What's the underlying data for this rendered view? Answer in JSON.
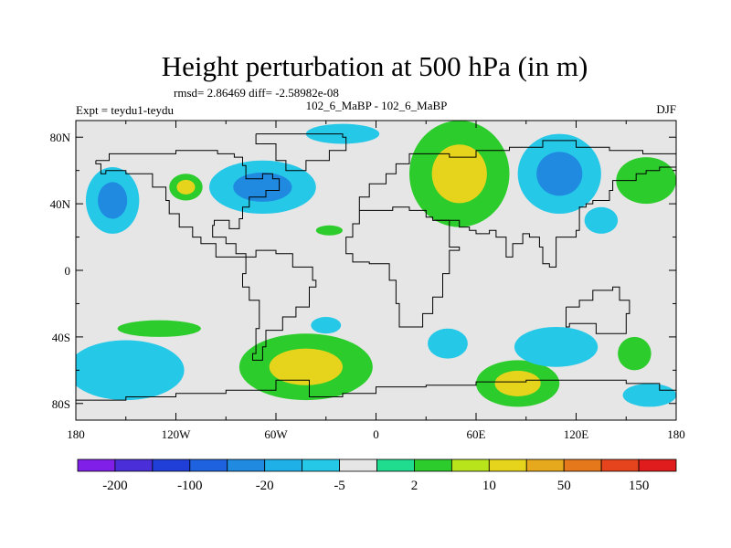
{
  "chart_data": {
    "type": "heatmap",
    "title": "Height perturbation at 500 hPa (in m)",
    "stats_line": "rmsd= 2.86469 diff= -2.58982e-08",
    "left_subtitle": "Expt = teydu1-teydu",
    "center_subtitle": "102_6_MaBP - 102_6_MaBP",
    "right_subtitle": "DJF",
    "xlabel": "",
    "ylabel": "",
    "x_range": [
      -180,
      180
    ],
    "y_range": [
      -90,
      90
    ],
    "x_ticks": [
      {
        "value": -180,
        "label": "180"
      },
      {
        "value": -120,
        "label": "120W"
      },
      {
        "value": -60,
        "label": "60W"
      },
      {
        "value": 0,
        "label": "0"
      },
      {
        "value": 60,
        "label": "60E"
      },
      {
        "value": 120,
        "label": "120E"
      },
      {
        "value": 180,
        "label": "180"
      }
    ],
    "y_ticks": [
      {
        "value": 80,
        "label": "80N"
      },
      {
        "value": 40,
        "label": "40N"
      },
      {
        "value": 0,
        "label": "0"
      },
      {
        "value": -40,
        "label": "40S"
      },
      {
        "value": -80,
        "label": "80S"
      }
    ],
    "colorbar": {
      "colors": [
        "#7f1fe8",
        "#4a2ed8",
        "#1f3fd8",
        "#1f62e0",
        "#1f8ae0",
        "#1fb0e8",
        "#26c8e8",
        "#e6e6e6",
        "#1fdc8e",
        "#2ccc2c",
        "#b8e41c",
        "#e6d41c",
        "#e6a81c",
        "#e6781c",
        "#e6441c",
        "#e01c1c"
      ],
      "labels": [
        {
          "boundary": 1,
          "label": "-200"
        },
        {
          "boundary": 3,
          "label": "-100"
        },
        {
          "boundary": 5,
          "label": "-20"
        },
        {
          "boundary": 7,
          "label": "-5"
        },
        {
          "boundary": 9,
          "label": "2"
        },
        {
          "boundary": 11,
          "label": "10"
        },
        {
          "boundary": 13,
          "label": "50"
        },
        {
          "boundary": 15,
          "label": "150"
        }
      ]
    },
    "background_color": "#e6e6e6",
    "anomalies": [
      {
        "name": "pacific-low-nh",
        "lon": -158,
        "lat": 42,
        "rx": 16,
        "ry": 20,
        "level": "-5",
        "core": "-20"
      },
      {
        "name": "pacific-high-nh",
        "lon": -114,
        "lat": 50,
        "rx": 10,
        "ry": 8,
        "level": "2",
        "core": "10"
      },
      {
        "name": "na-low",
        "lon": -68,
        "lat": 50,
        "rx": 32,
        "ry": 16,
        "level": "-5",
        "core": "-20"
      },
      {
        "name": "arctic-low",
        "lon": -20,
        "lat": 82,
        "rx": 22,
        "ry": 6,
        "level": "-5",
        "core": null
      },
      {
        "name": "atlantic-small-high",
        "lon": -28,
        "lat": 24,
        "rx": 8,
        "ry": 3,
        "level": "2",
        "core": null
      },
      {
        "name": "eurasian-high",
        "lon": 50,
        "lat": 58,
        "rx": 30,
        "ry": 32,
        "level": "2",
        "core": "10"
      },
      {
        "name": "siberian-low",
        "lon": 110,
        "lat": 58,
        "rx": 25,
        "ry": 24,
        "level": "-5",
        "core": "-20"
      },
      {
        "name": "nw-pacific-high",
        "lon": 162,
        "lat": 54,
        "rx": 18,
        "ry": 14,
        "level": "2",
        "core": null
      },
      {
        "name": "nw-pacific-low",
        "lon": 135,
        "lat": 30,
        "rx": 10,
        "ry": 8,
        "level": "-5",
        "core": null
      },
      {
        "name": "sh-pacific-low",
        "lon": -150,
        "lat": -60,
        "rx": 35,
        "ry": 18,
        "level": "-5",
        "core": null
      },
      {
        "name": "sh-pacific-high",
        "lon": -130,
        "lat": -35,
        "rx": 25,
        "ry": 5,
        "level": "2",
        "core": null
      },
      {
        "name": "sh-atlantic-high",
        "lon": -42,
        "lat": -58,
        "rx": 40,
        "ry": 20,
        "level": "2",
        "core": "10"
      },
      {
        "name": "sh-atlantic-small-low",
        "lon": -30,
        "lat": -33,
        "rx": 9,
        "ry": 5,
        "level": "-5",
        "core": null
      },
      {
        "name": "sh-africa-low",
        "lon": 43,
        "lat": -44,
        "rx": 12,
        "ry": 9,
        "level": "-5",
        "core": null
      },
      {
        "name": "sh-indian-high",
        "lon": 85,
        "lat": -68,
        "rx": 25,
        "ry": 14,
        "level": "2",
        "core": "10"
      },
      {
        "name": "sh-indian-low",
        "lon": 108,
        "lat": -46,
        "rx": 25,
        "ry": 12,
        "level": "-5",
        "core": null
      },
      {
        "name": "sh-nz-high",
        "lon": 155,
        "lat": -50,
        "rx": 10,
        "ry": 10,
        "level": "2",
        "core": null
      },
      {
        "name": "sh-nz-low",
        "lon": 164,
        "lat": -75,
        "rx": 16,
        "ry": 7,
        "level": "-5",
        "core": null
      }
    ],
    "coastlines": [
      [
        [
          -168,
          66
        ],
        [
          -160,
          70
        ],
        [
          -140,
          70
        ],
        [
          -120,
          72
        ],
        [
          -95,
          70
        ],
        [
          -85,
          68
        ],
        [
          -80,
          63
        ],
        [
          -78,
          55
        ],
        [
          -68,
          58
        ],
        [
          -62,
          55
        ],
        [
          -58,
          48
        ],
        [
          -66,
          44
        ],
        [
          -76,
          38
        ],
        [
          -80,
          31
        ],
        [
          -82,
          25
        ],
        [
          -88,
          30
        ],
        [
          -97,
          27
        ],
        [
          -98,
          20
        ],
        [
          -90,
          16
        ],
        [
          -84,
          10
        ],
        [
          -78,
          8
        ],
        [
          -96,
          16
        ],
        [
          -105,
          20
        ],
        [
          -110,
          26
        ],
        [
          -118,
          34
        ],
        [
          -124,
          42
        ],
        [
          -126,
          50
        ],
        [
          -134,
          58
        ],
        [
          -150,
          60
        ],
        [
          -162,
          58
        ],
        [
          -165,
          64
        ],
        [
          -168,
          66
        ]
      ],
      [
        [
          -78,
          8
        ],
        [
          -72,
          12
        ],
        [
          -60,
          10
        ],
        [
          -50,
          2
        ],
        [
          -38,
          -6
        ],
        [
          -36,
          -10
        ],
        [
          -40,
          -22
        ],
        [
          -48,
          -28
        ],
        [
          -56,
          -36
        ],
        [
          -66,
          -46
        ],
        [
          -68,
          -54
        ],
        [
          -74,
          -50
        ],
        [
          -72,
          -35
        ],
        [
          -70,
          -18
        ],
        [
          -76,
          -10
        ],
        [
          -80,
          -2
        ],
        [
          -78,
          8
        ]
      ],
      [
        [
          -72,
          82
        ],
        [
          -50,
          82
        ],
        [
          -20,
          80
        ],
        [
          -18,
          72
        ],
        [
          -28,
          66
        ],
        [
          -42,
          60
        ],
        [
          -54,
          66
        ],
        [
          -60,
          76
        ],
        [
          -72,
          82
        ]
      ],
      [
        [
          -10,
          36
        ],
        [
          -10,
          44
        ],
        [
          -4,
          48
        ],
        [
          -4,
          52
        ],
        [
          6,
          58
        ],
        [
          12,
          64
        ],
        [
          20,
          70
        ],
        [
          32,
          70
        ],
        [
          44,
          68
        ],
        [
          60,
          72
        ],
        [
          80,
          74
        ],
        [
          100,
          78
        ],
        [
          120,
          74
        ],
        [
          140,
          72
        ],
        [
          160,
          70
        ],
        [
          180,
          66
        ]
      ],
      [
        [
          -10,
          36
        ],
        [
          -2,
          36
        ],
        [
          10,
          38
        ],
        [
          20,
          36
        ],
        [
          30,
          32
        ],
        [
          34,
          30
        ],
        [
          44,
          14
        ],
        [
          50,
          12
        ],
        [
          44,
          -2
        ],
        [
          40,
          -16
        ],
        [
          34,
          -26
        ],
        [
          28,
          -34
        ],
        [
          18,
          -34
        ],
        [
          14,
          -20
        ],
        [
          12,
          -6
        ],
        [
          8,
          4
        ],
        [
          -4,
          5
        ],
        [
          -14,
          10
        ],
        [
          -18,
          20
        ],
        [
          -14,
          28
        ],
        [
          -10,
          36
        ]
      ],
      [
        [
          34,
          30
        ],
        [
          44,
          30
        ],
        [
          50,
          26
        ],
        [
          56,
          24
        ],
        [
          60,
          22
        ],
        [
          68,
          24
        ],
        [
          72,
          20
        ],
        [
          78,
          8
        ],
        [
          82,
          16
        ],
        [
          88,
          22
        ],
        [
          92,
          20
        ],
        [
          98,
          14
        ],
        [
          100,
          4
        ],
        [
          104,
          2
        ],
        [
          108,
          10
        ],
        [
          108,
          20
        ],
        [
          120,
          24
        ],
        [
          122,
          30
        ],
        [
          122,
          38
        ],
        [
          126,
          40
        ],
        [
          130,
          42
        ],
        [
          140,
          48
        ],
        [
          142,
          54
        ],
        [
          156,
          58
        ],
        [
          162,
          60
        ],
        [
          170,
          62
        ],
        [
          180,
          66
        ]
      ],
      [
        [
          114,
          -22
        ],
        [
          122,
          -18
        ],
        [
          130,
          -12
        ],
        [
          138,
          -12
        ],
        [
          142,
          -10
        ],
        [
          146,
          -18
        ],
        [
          152,
          -26
        ],
        [
          150,
          -38
        ],
        [
          140,
          -38
        ],
        [
          132,
          -32
        ],
        [
          116,
          -34
        ],
        [
          114,
          -22
        ]
      ],
      [
        [
          -180,
          -78
        ],
        [
          -150,
          -76
        ],
        [
          -120,
          -74
        ],
        [
          -90,
          -72
        ],
        [
          -60,
          -66
        ],
        [
          -40,
          -76
        ],
        [
          -20,
          -74
        ],
        [
          0,
          -70
        ],
        [
          30,
          -69
        ],
        [
          60,
          -67
        ],
        [
          90,
          -66
        ],
        [
          120,
          -66
        ],
        [
          150,
          -68
        ],
        [
          170,
          -72
        ],
        [
          180,
          -78
        ]
      ]
    ]
  }
}
